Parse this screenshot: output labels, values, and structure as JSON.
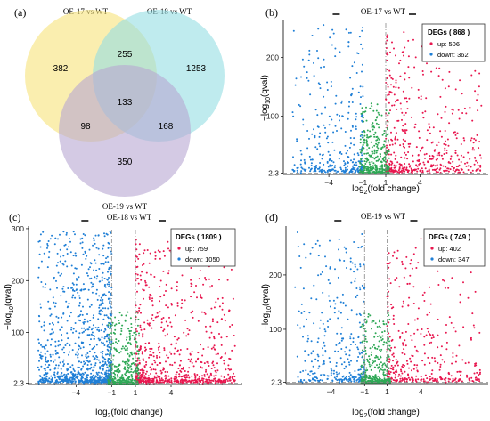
{
  "panel_labels": [
    "(a)",
    "(b)",
    "(c)",
    "(d)"
  ],
  "venn": {
    "set_labels": [
      "OE-17 vs WT",
      "OE-18 vs WT",
      "OE-19 vs WT"
    ],
    "regions": {
      "only_17": "382",
      "only_18": "1253",
      "only_19": "350",
      "ab": "255",
      "ac": "98",
      "bc": "168",
      "abc": "133"
    },
    "colors": [
      "#f7e27a",
      "#94dde3",
      "#b7a6d2"
    ]
  },
  "colors": {
    "up": "#e8174f",
    "down": "#1f7fd6",
    "ns": "#2fa856",
    "threshold_line": "#888888"
  },
  "chart_data": [
    {
      "type": "scatter",
      "panel": "(b)",
      "title": "OE-17 vs WT",
      "xlabel": "log2(fold change)",
      "ylabel": "-log10(qval)",
      "x_ticks": [
        -4,
        -1,
        1,
        4
      ],
      "y_ticks": [
        "2.3",
        "100",
        "200"
      ],
      "xlim": [
        -8,
        10
      ],
      "ylim": [
        0,
        265
      ],
      "grid": false,
      "legend": {
        "position": "top-right",
        "title": "DEGs ( 868 )",
        "up_label": "up: 506",
        "down_label": "down: 362"
      },
      "thresholds": {
        "x": [
          -1,
          1
        ],
        "y": 2.3
      },
      "series": [
        {
          "values_up": 506,
          "values_down": 362
        }
      ]
    },
    {
      "type": "scatter",
      "panel": "(c)",
      "title": "OE-18 vs WT",
      "xlabel": "log2(fold change)",
      "ylabel": "-log10(qval)",
      "x_ticks": [
        -4,
        -1,
        1,
        4
      ],
      "y_ticks": [
        "2.3",
        "100",
        "200",
        "300"
      ],
      "xlim": [
        -8,
        10
      ],
      "ylim": [
        0,
        305
      ],
      "grid": false,
      "legend": {
        "position": "top-right",
        "title": "DEGs ( 1809 )",
        "up_label": "up: 759",
        "down_label": "down: 1050"
      },
      "thresholds": {
        "x": [
          -1,
          1
        ],
        "y": 2.3
      },
      "series": [
        {
          "values_up": 759,
          "values_down": 1050
        }
      ]
    },
    {
      "type": "scatter",
      "panel": "(d)",
      "title": "OE-19 vs WT",
      "xlabel": "log2(fold change)",
      "ylabel": "-log10(qval)",
      "x_ticks": [
        -4,
        -1,
        1,
        4
      ],
      "y_ticks": [
        "2.3",
        "100",
        "200"
      ],
      "xlim": [
        -8,
        10
      ],
      "ylim": [
        0,
        290
      ],
      "grid": false,
      "legend": {
        "position": "top-right",
        "title": "DEGs ( 749 )",
        "up_label": "up: 402",
        "down_label": "down: 347"
      },
      "thresholds": {
        "x": [
          -1,
          1
        ],
        "y": 2.3
      },
      "series": [
        {
          "values_up": 402,
          "values_down": 347
        }
      ]
    }
  ]
}
